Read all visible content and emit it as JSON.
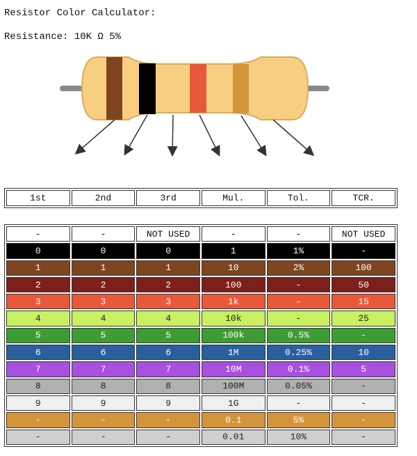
{
  "title": "Resistor Color Calculator:",
  "resistance": "Resistance: 10K Ω 5%",
  "header": [
    "1st",
    "2nd",
    "3rd",
    "Mul.",
    "Tol.",
    "TCR."
  ],
  "rows": [
    [
      "-",
      "-",
      "NOT USED",
      "-",
      "-",
      "NOT USED"
    ],
    [
      "0",
      "0",
      "0",
      "1",
      "1%",
      "-"
    ],
    [
      "1",
      "1",
      "1",
      "10",
      "2%",
      "100"
    ],
    [
      "2",
      "2",
      "2",
      "100",
      "-",
      "50"
    ],
    [
      "3",
      "3",
      "3",
      "1k",
      "-",
      "15"
    ],
    [
      "4",
      "4",
      "4",
      "10k",
      "-",
      "25"
    ],
    [
      "5",
      "5",
      "5",
      "100k",
      "0.5%",
      "-"
    ],
    [
      "6",
      "6",
      "6",
      "1M",
      "0.25%",
      "10"
    ],
    [
      "7",
      "7",
      "7",
      "10M",
      "0.1%",
      "5"
    ],
    [
      "8",
      "8",
      "8",
      "100M",
      "0.05%",
      "-"
    ],
    [
      "9",
      "9",
      "9",
      "1G",
      "-",
      "-"
    ],
    [
      "-",
      "-",
      "-",
      "0.1",
      "5%",
      "-"
    ],
    [
      "-",
      "-",
      "-",
      "0.01",
      "10%",
      "-"
    ]
  ]
}
